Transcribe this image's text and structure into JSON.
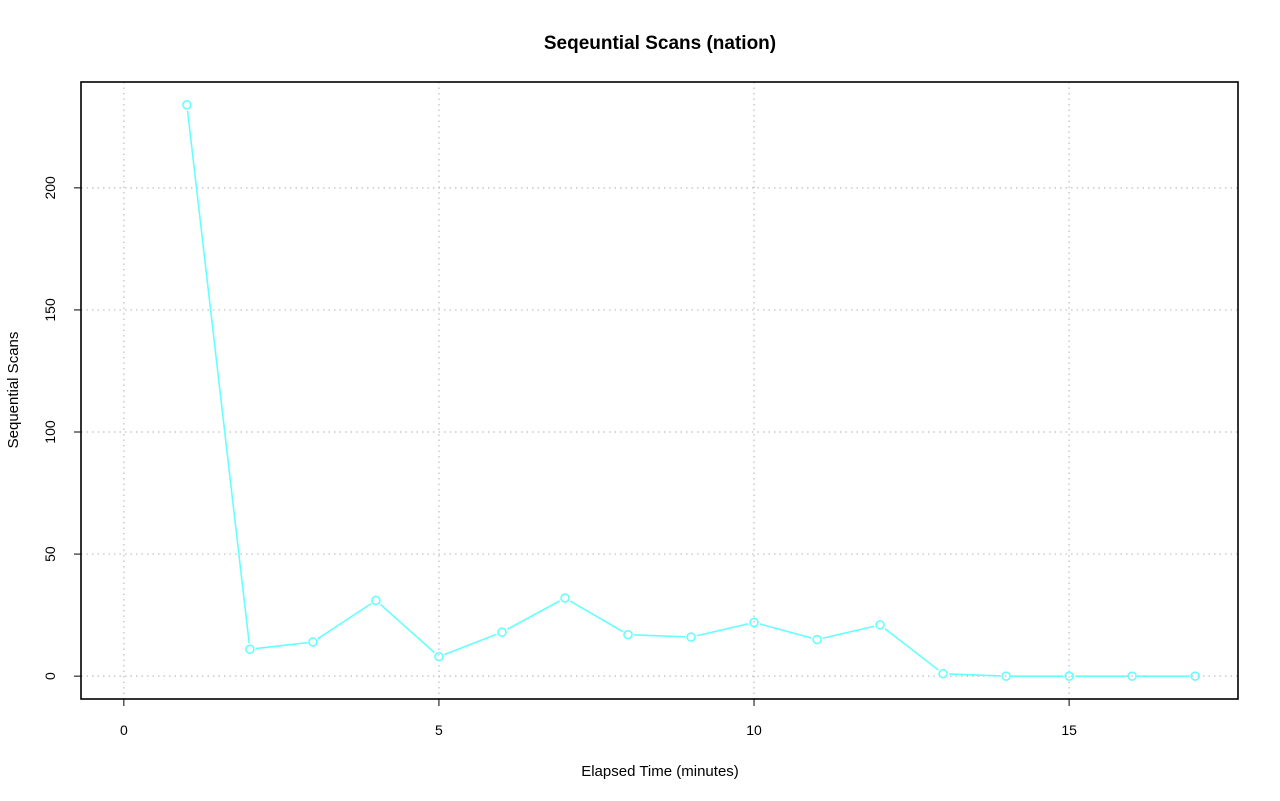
{
  "chart_data": {
    "type": "line",
    "title": "Seqeuntial Scans (nation)",
    "xlabel": "Elapsed Time (minutes)",
    "ylabel": "Sequential Scans",
    "x_ticks": [
      0,
      5,
      10,
      15
    ],
    "y_ticks": [
      0,
      50,
      100,
      150,
      200
    ],
    "xlim": [
      -0.68,
      17.68
    ],
    "ylim": [
      -9.36,
      243.36
    ],
    "grid": true,
    "line_color": "#66FFFF",
    "series": [
      {
        "x": [
          1,
          2,
          3,
          4,
          5,
          6,
          7,
          8,
          9,
          10,
          11,
          12,
          13,
          14,
          15,
          16,
          17
        ],
        "values": [
          234,
          11,
          14,
          31,
          8,
          18,
          32,
          17,
          16,
          22,
          15,
          21,
          1,
          0,
          0,
          0,
          0
        ]
      }
    ]
  }
}
